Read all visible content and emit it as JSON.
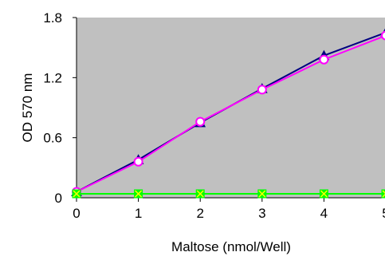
{
  "chart_data": {
    "type": "line",
    "title": "",
    "xlabel": "Maltose (nmol/Well)",
    "ylabel": "OD 570 nm",
    "x": [
      0,
      1,
      2,
      3,
      4,
      5
    ],
    "x_ticks": [
      "0",
      "1",
      "2",
      "3",
      "4",
      "5"
    ],
    "y_ticks": [
      "0",
      "0.6",
      "1.2",
      "1.8"
    ],
    "y_tick_values": [
      0,
      0.6,
      1.2,
      1.8
    ],
    "xlim": [
      0,
      5
    ],
    "ylim": [
      0,
      1.8
    ],
    "grid": false,
    "plot_background": "#c0c0c0",
    "series": [
      {
        "values": [
          0.06,
          0.38,
          0.75,
          1.09,
          1.42,
          1.65
        ],
        "color": "#000080",
        "marker": "triangle",
        "marker_fill": "#000080"
      },
      {
        "values": [
          0.06,
          0.36,
          0.76,
          1.08,
          1.38,
          1.62
        ],
        "color": "#ff00ff",
        "marker": "circle",
        "marker_fill": "#ffffff"
      },
      {
        "values": [
          0.04,
          0.04,
          0.04,
          0.04,
          0.04,
          0.04
        ],
        "color": "#00ff00",
        "marker": "square-x",
        "marker_fill": "#00ff00"
      }
    ]
  }
}
